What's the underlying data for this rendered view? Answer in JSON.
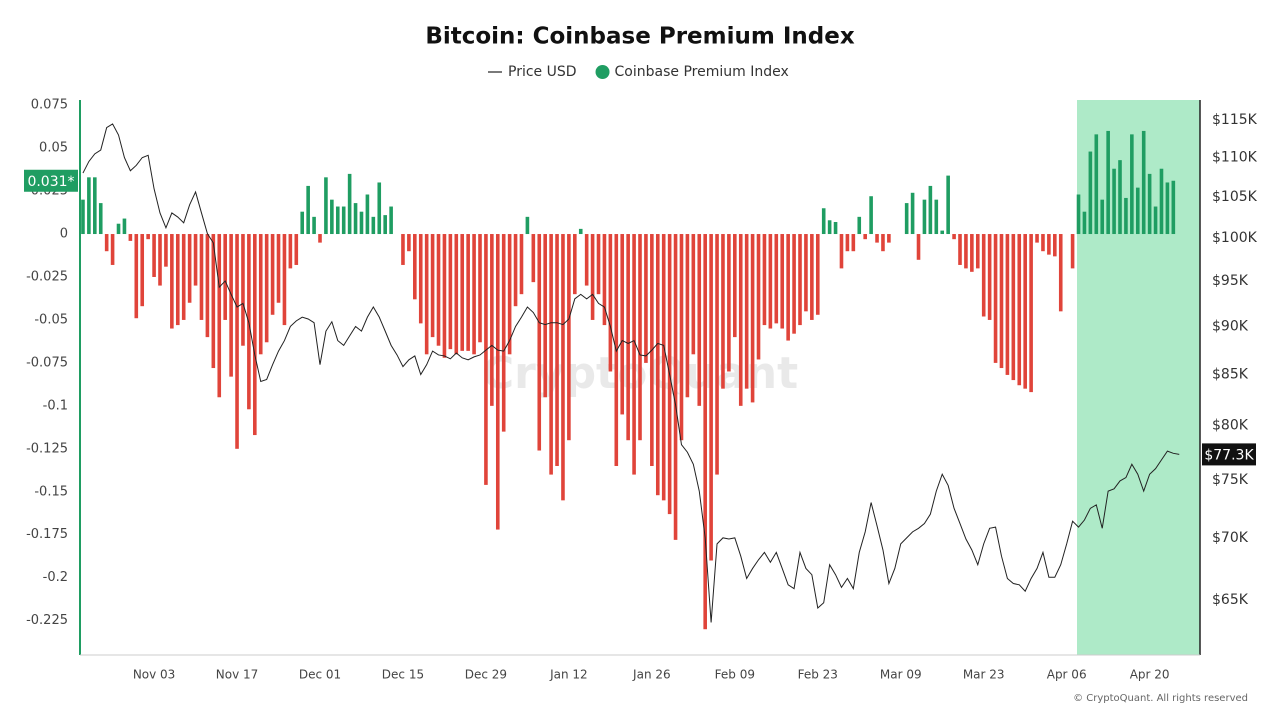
{
  "chart_data": {
    "type": "combo",
    "title": "Bitcoin: Coinbase Premium Index",
    "watermark": "CryptoQuant",
    "footer": "© CryptoQuant. All rights reserved",
    "legend": "top",
    "grid": false,
    "y2_log": true,
    "premium_tag": "0.031*",
    "price_tag": "$77.3K",
    "categories": [
      null,
      null,
      null,
      null,
      null,
      null,
      null,
      null,
      null,
      null,
      null,
      null,
      "Nov 03",
      null,
      null,
      null,
      null,
      null,
      null,
      null,
      null,
      null,
      null,
      null,
      null,
      null,
      "Nov 17",
      null,
      null,
      null,
      null,
      null,
      null,
      null,
      null,
      null,
      null,
      null,
      null,
      null,
      "Dec 01",
      null,
      null,
      null,
      null,
      null,
      null,
      null,
      null,
      null,
      null,
      null,
      null,
      null,
      "Dec 15",
      null,
      null,
      null,
      null,
      null,
      null,
      null,
      null,
      null,
      null,
      null,
      null,
      null,
      "Dec 29",
      null,
      null,
      null,
      null,
      null,
      null,
      null,
      null,
      null,
      null,
      null,
      null,
      null,
      "Jan 12",
      null,
      null,
      null,
      null,
      null,
      null,
      null,
      null,
      null,
      null,
      null,
      null,
      null,
      "Jan 26",
      null,
      null,
      null,
      null,
      null,
      null,
      null,
      null,
      null,
      null,
      null,
      null,
      null,
      "Feb 09",
      null,
      null,
      null,
      null,
      null,
      null,
      null,
      null,
      null,
      null,
      null,
      null,
      null,
      "Feb 23",
      null,
      null,
      null,
      null,
      null,
      null,
      null,
      null,
      null,
      null,
      null,
      null,
      null,
      "Mar 09",
      null,
      null,
      null,
      null,
      null,
      null,
      null,
      null,
      null,
      null,
      null,
      null,
      null,
      "Mar 23",
      null,
      null,
      null,
      null,
      null,
      null,
      null,
      null,
      null,
      null,
      null,
      null,
      null,
      "Apr 06",
      null,
      null,
      null,
      null,
      null,
      null,
      null,
      null,
      null,
      null,
      null,
      null,
      null,
      "Apr 20",
      null,
      null,
      null,
      null,
      null,
      null,
      null,
      null
    ],
    "ylim": [
      -0.245,
      0.078
    ],
    "yticks": [
      0.075,
      0.05,
      0.025,
      0,
      -0.025,
      -0.05,
      -0.075,
      -0.1,
      -0.125,
      -0.15,
      -0.175,
      -0.2,
      -0.225
    ],
    "y2lim": [
      60900,
      117800
    ],
    "y2ticks": [
      {
        "value": 115000,
        "label": "$115K"
      },
      {
        "value": 110000,
        "label": "$110K"
      },
      {
        "value": 105000,
        "label": "$105K"
      },
      {
        "value": 100000,
        "label": "$100K"
      },
      {
        "value": 95000,
        "label": "$95K"
      },
      {
        "value": 90000,
        "label": "$90K"
      },
      {
        "value": 85000,
        "label": "$85K"
      },
      {
        "value": 80000,
        "label": "$80K"
      },
      {
        "value": 75000,
        "label": "$75K"
      },
      {
        "value": 70000,
        "label": "$70K"
      },
      {
        "value": 65000,
        "label": "$65K"
      }
    ],
    "series": [
      {
        "name": "Price USD",
        "type": "line",
        "axis": "y2",
        "color": "#222222",
        "values": [
          108000,
          109500,
          110500,
          111000,
          114000,
          114500,
          113000,
          110000,
          108300,
          109000,
          110000,
          110300,
          106000,
          103000,
          101200,
          103000,
          102500,
          101800,
          104000,
          105600,
          103000,
          100500,
          99400,
          94300,
          95000,
          93500,
          92100,
          92500,
          90400,
          87000,
          84300,
          84500,
          86000,
          87400,
          88500,
          90000,
          90600,
          91000,
          90800,
          90400,
          86000,
          89500,
          90500,
          88500,
          88000,
          89000,
          90000,
          89500,
          91000,
          92100,
          91000,
          89500,
          88000,
          87000,
          85800,
          86500,
          86900,
          85000,
          86000,
          87400,
          87000,
          86900,
          86600,
          87200,
          86700,
          86500,
          86800,
          87000,
          87500,
          88000,
          87500,
          87400,
          88500,
          90000,
          91000,
          92100,
          91500,
          90400,
          90200,
          90400,
          90400,
          90200,
          90800,
          93000,
          93500,
          93000,
          93500,
          92500,
          92100,
          90000,
          87400,
          88500,
          88200,
          88500,
          87000,
          86900,
          87500,
          88200,
          88000,
          85000,
          82000,
          78200,
          77500,
          76400,
          74000,
          70000,
          63300,
          69500,
          70000,
          69900,
          70000,
          68500,
          66700,
          67500,
          68200,
          68800,
          68000,
          68800,
          67500,
          66200,
          65900,
          68800,
          67500,
          67000,
          64400,
          64800,
          67800,
          67000,
          66000,
          66700,
          65900,
          68800,
          70500,
          73000,
          71000,
          69000,
          66300,
          67500,
          69500,
          70000,
          70500,
          70800,
          71200,
          72000,
          74000,
          75500,
          74500,
          72500,
          71200,
          69900,
          69000,
          67800,
          69500,
          70800,
          70900,
          68500,
          66700,
          66300,
          66200,
          65700,
          66700,
          67500,
          68800,
          66800,
          66800,
          67800,
          69500,
          71400,
          70900,
          71500,
          72500,
          72800,
          70800,
          74000,
          74200,
          74900,
          75200,
          76400,
          75500,
          74000,
          75500,
          76000,
          76800,
          77600,
          77400,
          77300,
          null,
          null,
          null
        ]
      },
      {
        "name": "Coinbase Premium Index",
        "type": "bar",
        "axis": "y",
        "color": "#1f9d62",
        "negative_color": "#e0443a",
        "values": [
          0.02,
          0.033,
          0.033,
          0.018,
          -0.01,
          -0.018,
          0.006,
          0.009,
          -0.004,
          -0.049,
          -0.042,
          -0.003,
          -0.025,
          -0.03,
          -0.019,
          -0.055,
          -0.053,
          -0.05,
          -0.04,
          -0.03,
          -0.05,
          -0.06,
          -0.078,
          -0.095,
          -0.05,
          -0.083,
          -0.125,
          -0.065,
          -0.102,
          -0.117,
          -0.07,
          -0.063,
          -0.047,
          -0.04,
          -0.053,
          -0.02,
          -0.018,
          0.013,
          0.028,
          0.01,
          -0.005,
          0.033,
          0.02,
          0.016,
          0.016,
          0.035,
          0.018,
          0.013,
          0.023,
          0.01,
          0.03,
          0.011,
          0.016,
          0,
          -0.018,
          -0.01,
          -0.038,
          -0.052,
          -0.07,
          -0.06,
          -0.065,
          -0.072,
          -0.067,
          -0.07,
          -0.068,
          -0.068,
          -0.07,
          -0.063,
          -0.146,
          -0.1,
          -0.172,
          -0.115,
          -0.07,
          -0.042,
          -0.035,
          0.01,
          -0.028,
          -0.126,
          -0.095,
          -0.14,
          -0.135,
          -0.155,
          -0.12,
          -0.035,
          0.003,
          -0.03,
          -0.05,
          -0.035,
          -0.053,
          -0.08,
          -0.135,
          -0.105,
          -0.12,
          -0.14,
          -0.12,
          -0.075,
          -0.135,
          -0.152,
          -0.155,
          -0.163,
          -0.178,
          -0.12,
          -0.095,
          -0.07,
          -0.1,
          -0.23,
          -0.19,
          -0.14,
          -0.09,
          -0.08,
          -0.06,
          -0.1,
          -0.09,
          -0.098,
          -0.073,
          -0.053,
          -0.055,
          -0.052,
          -0.055,
          -0.062,
          -0.058,
          -0.053,
          -0.045,
          -0.05,
          -0.047,
          0.015,
          0.008,
          0.007,
          -0.02,
          -0.01,
          -0.01,
          0.01,
          -0.003,
          0.022,
          -0.005,
          -0.01,
          -0.005,
          0,
          0,
          0.018,
          0.024,
          -0.015,
          0.02,
          0.028,
          0.02,
          0.002,
          0.034,
          -0.003,
          -0.018,
          -0.02,
          -0.022,
          -0.02,
          -0.048,
          -0.05,
          -0.075,
          -0.078,
          -0.082,
          -0.085,
          -0.088,
          -0.09,
          -0.092,
          -0.005,
          -0.01,
          -0.012,
          -0.013,
          -0.045,
          0,
          -0.02,
          0.023,
          0.013,
          0.048,
          0.058,
          0.02,
          0.06,
          0.038,
          0.043,
          0.021,
          0.058,
          0.027,
          0.06,
          0.035,
          0.016,
          0.038,
          0.03,
          0.031,
          null,
          null,
          null,
          null
        ]
      }
    ]
  }
}
